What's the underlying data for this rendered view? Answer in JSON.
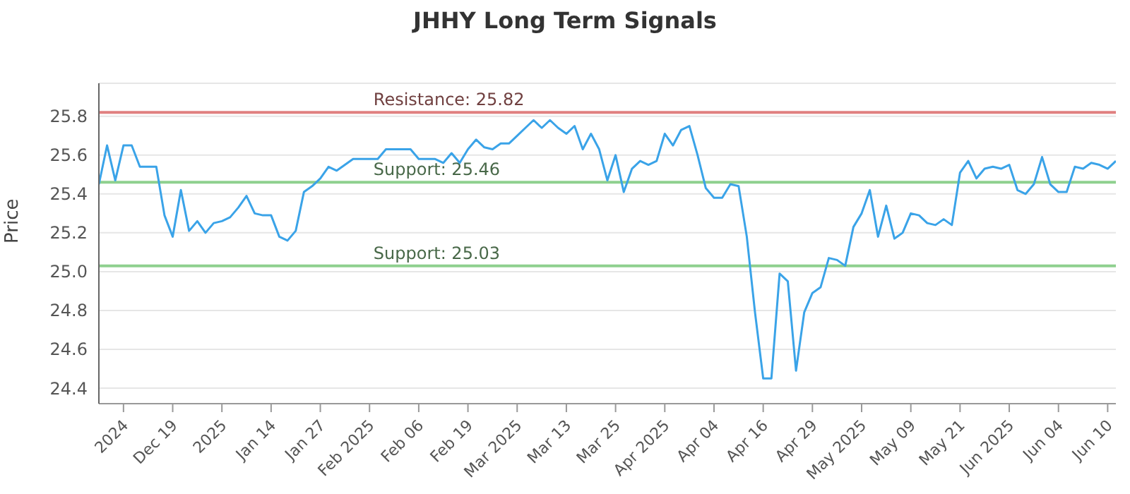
{
  "chart_data": {
    "type": "line",
    "title": "JHHY Long Term Signals",
    "ylabel": "Price",
    "categories": [
      null,
      null,
      null,
      "2024",
      null,
      null,
      null,
      null,
      null,
      "Dec 19",
      null,
      null,
      null,
      null,
      null,
      "2025",
      null,
      null,
      null,
      null,
      null,
      "Jan 14",
      null,
      null,
      null,
      null,
      null,
      "Jan 27",
      null,
      null,
      null,
      null,
      null,
      "Feb 2025",
      null,
      null,
      null,
      null,
      null,
      "Feb 06",
      null,
      null,
      null,
      null,
      null,
      "Feb 19",
      null,
      null,
      null,
      null,
      null,
      "Mar 2025",
      null,
      null,
      null,
      null,
      null,
      "Mar 13",
      null,
      null,
      null,
      null,
      null,
      "Mar 25",
      null,
      null,
      null,
      null,
      null,
      "Apr 2025",
      null,
      null,
      null,
      null,
      null,
      "Apr 04",
      null,
      null,
      null,
      null,
      null,
      "Apr 16",
      null,
      null,
      null,
      null,
      null,
      "Apr 29",
      null,
      null,
      null,
      null,
      null,
      "May 2025",
      null,
      null,
      null,
      null,
      null,
      "May 09",
      null,
      null,
      null,
      null,
      null,
      "May 21",
      null,
      null,
      null,
      null,
      null,
      "Jun 2025",
      null,
      null,
      null,
      null,
      null,
      "Jun 04",
      null,
      null,
      null,
      null,
      null,
      "Jun 10",
      null
    ],
    "series": [
      {
        "color": "#3aa3e8",
        "values": [
          25.45,
          25.65,
          25.47,
          25.65,
          25.65,
          25.54,
          25.54,
          25.54,
          25.29,
          25.18,
          25.42,
          25.21,
          25.26,
          25.2,
          25.25,
          25.26,
          25.28,
          25.33,
          25.39,
          25.3,
          25.29,
          25.29,
          25.18,
          25.16,
          25.21,
          25.41,
          25.44,
          25.48,
          25.54,
          25.52,
          25.55,
          25.58,
          25.58,
          25.58,
          25.58,
          25.63,
          25.63,
          25.63,
          25.63,
          25.58,
          25.58,
          25.58,
          25.56,
          25.61,
          25.56,
          25.63,
          25.68,
          25.64,
          25.63,
          25.66,
          25.66,
          25.7,
          25.74,
          25.78,
          25.74,
          25.78,
          25.74,
          25.71,
          25.75,
          25.63,
          25.71,
          25.63,
          25.47,
          25.6,
          25.41,
          25.53,
          25.57,
          25.55,
          25.57,
          25.71,
          25.65,
          25.73,
          25.75,
          25.6,
          25.43,
          25.38,
          25.38,
          25.45,
          25.44,
          25.18,
          24.79,
          24.45,
          24.45,
          24.99,
          24.95,
          24.49,
          24.79,
          24.89,
          24.92,
          25.07,
          25.06,
          25.03,
          25.23,
          25.3,
          25.42,
          25.18,
          25.34,
          25.17,
          25.2,
          25.3,
          25.29,
          25.25,
          25.24,
          25.27,
          25.24,
          25.51,
          25.57,
          25.48,
          25.53,
          25.54,
          25.53,
          25.55,
          25.42,
          25.4,
          25.45,
          25.59,
          25.45,
          25.41,
          25.41,
          25.54,
          25.53,
          25.56,
          25.55,
          25.53,
          25.57
        ]
      }
    ],
    "ylim": [
      24.32,
      25.97
    ],
    "yticks": [
      24.4,
      24.6,
      24.8,
      {
        "value": 25,
        "label": "25.0"
      },
      25.2,
      25.4,
      25.6,
      25.8
    ],
    "ref_lines": [
      {
        "axis": "y",
        "value": 25.82,
        "label": "Resistance: 25.82",
        "color": "#e08080"
      },
      {
        "axis": "y",
        "value": 25.46,
        "label": "Support: 25.46",
        "color": "#8fd08f"
      },
      {
        "axis": "y",
        "value": 25.03,
        "label": "Support: 25.03",
        "color": "#8fd08f"
      }
    ],
    "grid": "y",
    "marker": "none",
    "line_style": "solid"
  }
}
